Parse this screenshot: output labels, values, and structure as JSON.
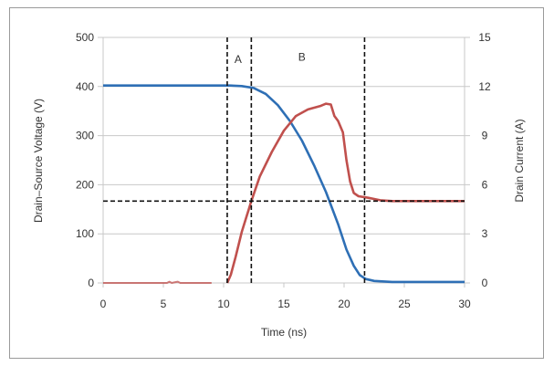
{
  "chart_data": {
    "type": "line",
    "xlabel": "Time (ns)",
    "ylabel": "Drain–Source Voltage (V)",
    "y2label": "Drain Current (A)",
    "xlim": [
      0,
      30
    ],
    "ylim": [
      0,
      500
    ],
    "y2lim": [
      0,
      15
    ],
    "xticks": [
      "0",
      "5",
      "10",
      "15",
      "20",
      "25",
      "30"
    ],
    "yticks": [
      "0",
      "100",
      "200",
      "300",
      "400",
      "500"
    ],
    "y2ticks": [
      "0",
      "3",
      "6",
      "9",
      "12",
      "15"
    ],
    "grid": true,
    "annotations": [
      {
        "text": "A",
        "x": 11.2,
        "y": 455
      },
      {
        "text": "B",
        "x": 16.5,
        "y": 460
      }
    ],
    "vlines": [
      10.3,
      12.3,
      21.7
    ],
    "hline_current": 5.0,
    "series": [
      {
        "name": "Drain-Source Voltage",
        "axis": "left",
        "color": "#2e6fb5",
        "x": [
          0,
          10.5,
          11.5,
          12.5,
          13.5,
          14.5,
          15.5,
          16.5,
          17.5,
          18.5,
          19.5,
          20.2,
          20.8,
          21.3,
          21.8,
          22.5,
          24,
          30
        ],
        "y": [
          402,
          402,
          401,
          397,
          385,
          362,
          330,
          290,
          240,
          185,
          120,
          68,
          35,
          16,
          8,
          4,
          2,
          2
        ]
      },
      {
        "name": "Drain Current",
        "axis": "right",
        "color": "#c0504d",
        "x": [
          0,
          5.3,
          5.5,
          5.7,
          6.0,
          6.2,
          6.4,
          9.0
        ],
        "y": [
          0,
          0,
          0.08,
          0,
          0.05,
          0.08,
          0,
          0
        ],
        "faded": true
      },
      {
        "name": "Drain Current",
        "axis": "right",
        "color": "#c0504d",
        "x": [
          10.3,
          10.6,
          11,
          11.5,
          12.3,
          13,
          14,
          15,
          16,
          17,
          18,
          18.5,
          18.9,
          19.2,
          19.5,
          19.9,
          20.2,
          20.5,
          20.8,
          21.2,
          22,
          23,
          24,
          30
        ],
        "y": [
          0,
          0.5,
          1.6,
          3.1,
          5,
          6.5,
          8,
          9.3,
          10.2,
          10.6,
          10.8,
          10.95,
          10.9,
          10.2,
          9.9,
          9.2,
          7.5,
          6.2,
          5.5,
          5.3,
          5.2,
          5.05,
          5.0,
          5.0
        ]
      }
    ]
  }
}
